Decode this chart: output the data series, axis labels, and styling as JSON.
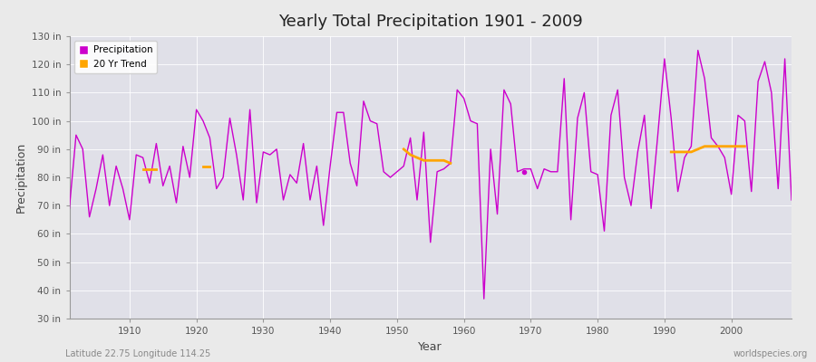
{
  "title": "Yearly Total Precipitation 1901 - 2009",
  "xlabel": "Year",
  "ylabel": "Precipitation",
  "bottom_left_label": "Latitude 22.75 Longitude 114.25",
  "bottom_right_label": "worldspecies.org",
  "ylim": [
    30,
    130
  ],
  "yticks": [
    30,
    40,
    50,
    60,
    70,
    80,
    90,
    100,
    110,
    120,
    130
  ],
  "ytick_labels": [
    "30 in",
    "40 in",
    "50 in",
    "60 in",
    "70 in",
    "80 in",
    "90 in",
    "100 in",
    "110 in",
    "120 in",
    "130 in"
  ],
  "precipitation_color": "#CC00CC",
  "trend_color": "#FFA500",
  "bg_color": "#EAEAEA",
  "plot_bg_color": "#E0E0E8",
  "grid_color": "#FFFFFF",
  "precipitation_years": [
    1901,
    1902,
    1903,
    1904,
    1905,
    1906,
    1907,
    1908,
    1909,
    1910,
    1911,
    1912,
    1913,
    1914,
    1915,
    1916,
    1917,
    1918,
    1919,
    1920,
    1921,
    1922,
    1923,
    1924,
    1925,
    1926,
    1927,
    1928,
    1929,
    1930,
    1931,
    1932,
    1933,
    1934,
    1935,
    1936,
    1937,
    1938,
    1939,
    1940,
    1941,
    1942,
    1943,
    1944,
    1945,
    1946,
    1947,
    1948,
    1949,
    1950,
    1951,
    1952,
    1953,
    1954,
    1955,
    1956,
    1957,
    1958,
    1959,
    1960,
    1961,
    1962,
    1963,
    1964,
    1965,
    1966,
    1967,
    1968,
    1969,
    1970,
    1971,
    1972,
    1973,
    1974,
    1975,
    1976,
    1977,
    1978,
    1979,
    1980,
    1981,
    1982,
    1983,
    1984,
    1985,
    1986,
    1987,
    1988,
    1989,
    1990,
    1991,
    1992,
    1993,
    1994,
    1995,
    1996,
    1997,
    1998,
    1999,
    2000,
    2001,
    2002,
    2003,
    2004,
    2005,
    2006,
    2007,
    2008,
    2009
  ],
  "precipitation_values": [
    69,
    95,
    90,
    66,
    76,
    88,
    70,
    84,
    76,
    65,
    88,
    87,
    78,
    92,
    77,
    84,
    71,
    91,
    80,
    104,
    100,
    94,
    76,
    80,
    101,
    88,
    72,
    104,
    71,
    89,
    88,
    90,
    72,
    81,
    78,
    92,
    72,
    84,
    63,
    84,
    103,
    103,
    85,
    77,
    107,
    100,
    99,
    82,
    80,
    82,
    84,
    94,
    72,
    96,
    57,
    82,
    83,
    85,
    111,
    108,
    100,
    99,
    37,
    90,
    67,
    111,
    106,
    82,
    83,
    83,
    76,
    83,
    82,
    82,
    115,
    65,
    101,
    110,
    82,
    81,
    61,
    102,
    111,
    80,
    70,
    89,
    102,
    69,
    95,
    122,
    101,
    75,
    87,
    91,
    125,
    115,
    94,
    91,
    87,
    74,
    102,
    100,
    75,
    114,
    121,
    110,
    76,
    122,
    72
  ],
  "trend_segments": [
    {
      "years": [
        1912,
        1913,
        1914
      ],
      "values": [
        83,
        83,
        83
      ]
    },
    {
      "years": [
        1921,
        1922
      ],
      "values": [
        84,
        84
      ]
    },
    {
      "years": [
        1951,
        1952,
        1953,
        1954,
        1955,
        1956,
        1957,
        1958
      ],
      "values": [
        90,
        88,
        87,
        86,
        86,
        86,
        86,
        85
      ]
    },
    {
      "years": [
        1991,
        1992,
        1993,
        1994,
        1995,
        1996,
        1997,
        1998,
        1999,
        2000,
        2001,
        2002
      ],
      "values": [
        89,
        89,
        89,
        89,
        90,
        91,
        91,
        91,
        91,
        91,
        91,
        91
      ]
    }
  ],
  "isolated_dot_year": 1969,
  "isolated_dot_value": 82
}
